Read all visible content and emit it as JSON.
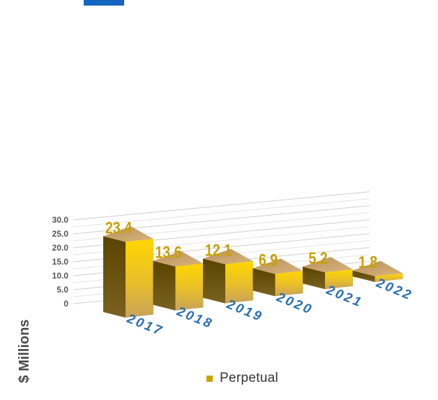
{
  "chart_data": {
    "type": "bar",
    "categories": [
      "2017",
      "2018",
      "2019",
      "2020",
      "2021",
      "2022"
    ],
    "values": [
      23.4,
      13.6,
      12.1,
      6.9,
      5.2,
      1.8
    ],
    "data_labels": [
      "23.4",
      "13.6",
      "12.1",
      "6.9",
      "5.2",
      "1.8"
    ],
    "ylabel": "$ Millions",
    "ylim": [
      0,
      30
    ],
    "yticks": [
      "0",
      "5.0",
      "10.0",
      "15.0",
      "20.0",
      "25.0",
      "30.0"
    ],
    "legend": {
      "labels": [
        "Perpetual"
      ],
      "position": "bottom-center"
    },
    "grid": true,
    "style": "3d-perspective",
    "colors": {
      "bar_front_top": "#ffd600",
      "bar_front_bottom": "#c9a25a",
      "bar_side": "#6b5200",
      "bar_top": "#c9a56a",
      "data_label": "#c8a000",
      "category_label": "#2a6fb0",
      "grid": "#cfcfcf",
      "title_accent": "#1565c0"
    }
  }
}
